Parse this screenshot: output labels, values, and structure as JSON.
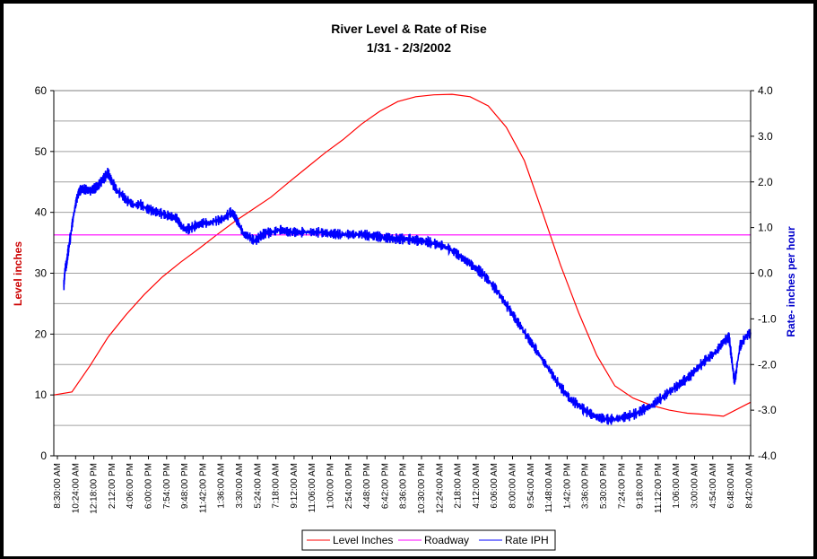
{
  "chart_data": {
    "type": "line",
    "title": "River Level & Rate of Rise",
    "subtitle": "1/31 - 2/3/2002",
    "ylabel_left": "Level inches",
    "ylabel_right": "Rate- inches per hour",
    "ylim_left": [
      0,
      60
    ],
    "ylim_right": [
      -4.0,
      4.0
    ],
    "yticks_left": [
      "0",
      "10",
      "20",
      "30",
      "40",
      "50",
      "60"
    ],
    "yticks_right": [
      "-4.0",
      "-3.0",
      "-2.0",
      "-1.0",
      "0.0",
      "1.0",
      "2.0",
      "3.0",
      "4.0"
    ],
    "x_ticks": [
      "8:30:00 AM",
      "10:24:00 AM",
      "12:18:00 PM",
      "2:12:00 PM",
      "4:06:00 PM",
      "6:00:00 PM",
      "7:54:00 PM",
      "9:48:00 PM",
      "11:42:00 PM",
      "1:36:00 AM",
      "3:30:00 AM",
      "5:24:00 AM",
      "7:18:00 AM",
      "9:12:00 AM",
      "11:06:00 AM",
      "1:00:00 PM",
      "2:54:00 PM",
      "4:48:00 PM",
      "6:42:00 PM",
      "8:36:00 PM",
      "10:30:00 PM",
      "12:24:00 AM",
      "2:18:00 AM",
      "4:12:00 AM",
      "6:06:00 AM",
      "8:00:00 AM",
      "9:54:00 AM",
      "11:48:00 AM",
      "1:42:00 PM",
      "3:36:00 PM",
      "5:30:00 PM",
      "7:24:00 PM",
      "9:18:00 PM",
      "11:12:00 PM",
      "1:06:00 AM",
      "3:00:00 AM",
      "4:54:00 AM",
      "6:48:00 AM",
      "8:42:00 AM"
    ],
    "grid": true,
    "legend_position": "bottom",
    "series": [
      {
        "name": "Level Inches",
        "axis": "left",
        "color": "#ff0000",
        "x": [
          0,
          1,
          2,
          3,
          4,
          5,
          6,
          7,
          8,
          9,
          10,
          11,
          12,
          13,
          14,
          15,
          16,
          17,
          18,
          19,
          20,
          21,
          22,
          23,
          24,
          25,
          26,
          27,
          28,
          29,
          30,
          31,
          32,
          33,
          34,
          35,
          36,
          37,
          38.5
        ],
        "y": [
          10,
          10.5,
          14.8,
          19.5,
          23.2,
          26.5,
          29.4,
          31.8,
          34,
          36.3,
          38.5,
          40.5,
          42.5,
          45,
          47.4,
          49.8,
          52,
          54.5,
          56.6,
          58.2,
          59,
          59.3,
          59.4,
          59,
          57.5,
          54,
          48.5,
          40,
          31.3,
          23.5,
          16.5,
          11.5,
          9.5,
          8.3,
          7.5,
          7,
          6.8,
          6.5,
          8.8
        ],
        "y_note": "Level inches, read off the left axis"
      },
      {
        "name": "Roadway",
        "axis": "left",
        "color": "#ff00ff",
        "x": [
          0,
          38.5
        ],
        "y": [
          36.3,
          36.3
        ]
      },
      {
        "name": "Rate IPH",
        "axis": "right",
        "color": "#0000ff",
        "x": [
          0.55,
          0.62,
          0.7,
          0.8,
          0.95,
          1.1,
          1.25,
          1.4,
          1.6,
          2,
          2.4,
          2.8,
          3,
          3.2,
          3.5,
          3.8,
          4,
          4.4,
          4.8,
          5.2,
          5.6,
          6,
          6.4,
          6.8,
          7,
          7.3,
          7.6,
          7.9,
          8.2,
          8.6,
          9,
          9.4,
          9.8,
          10,
          10.3,
          10.5,
          10.8,
          11.1,
          11.5,
          12,
          12.5,
          13,
          13.5,
          14,
          14.5,
          15,
          15.5,
          16,
          16.5,
          17,
          17.5,
          18,
          18.5,
          19,
          19.5,
          20,
          20.5,
          21,
          21.5,
          22,
          22.5,
          23,
          23.5,
          24,
          24.5,
          25,
          25.5,
          26,
          26.5,
          27,
          27.5,
          28,
          28.5,
          29,
          29.5,
          30,
          30.5,
          31,
          31.5,
          32,
          32.5,
          33,
          33.5,
          34,
          34.5,
          35,
          35.5,
          36,
          36.5,
          37,
          37.3,
          37.6,
          37.9,
          38.2,
          38.5
        ],
        "y": [
          -0.3,
          0.1,
          0.2,
          0.5,
          0.9,
          1.3,
          1.6,
          1.8,
          1.85,
          1.8,
          1.9,
          2.1,
          2.2,
          2.0,
          1.8,
          1.7,
          1.6,
          1.5,
          1.5,
          1.4,
          1.35,
          1.3,
          1.25,
          1.2,
          1.05,
          0.95,
          1.0,
          1.05,
          1.1,
          1.1,
          1.15,
          1.2,
          1.35,
          1.25,
          1.0,
          0.85,
          0.8,
          0.7,
          0.85,
          0.9,
          0.95,
          0.9,
          0.9,
          0.9,
          0.9,
          0.88,
          0.86,
          0.85,
          0.85,
          0.85,
          0.82,
          0.8,
          0.77,
          0.75,
          0.75,
          0.72,
          0.7,
          0.65,
          0.6,
          0.5,
          0.35,
          0.2,
          0.05,
          -0.15,
          -0.4,
          -0.7,
          -1.0,
          -1.3,
          -1.6,
          -1.9,
          -2.2,
          -2.5,
          -2.75,
          -2.9,
          -3.05,
          -3.15,
          -3.2,
          -3.2,
          -3.15,
          -3.1,
          -3.0,
          -2.9,
          -2.75,
          -2.6,
          -2.45,
          -2.3,
          -2.1,
          -1.9,
          -1.75,
          -1.5,
          -1.4,
          -2.4,
          -1.6,
          -1.4,
          -1.3
        ],
        "y_note": "Rate- inches per hour, read off the right axis"
      }
    ]
  }
}
